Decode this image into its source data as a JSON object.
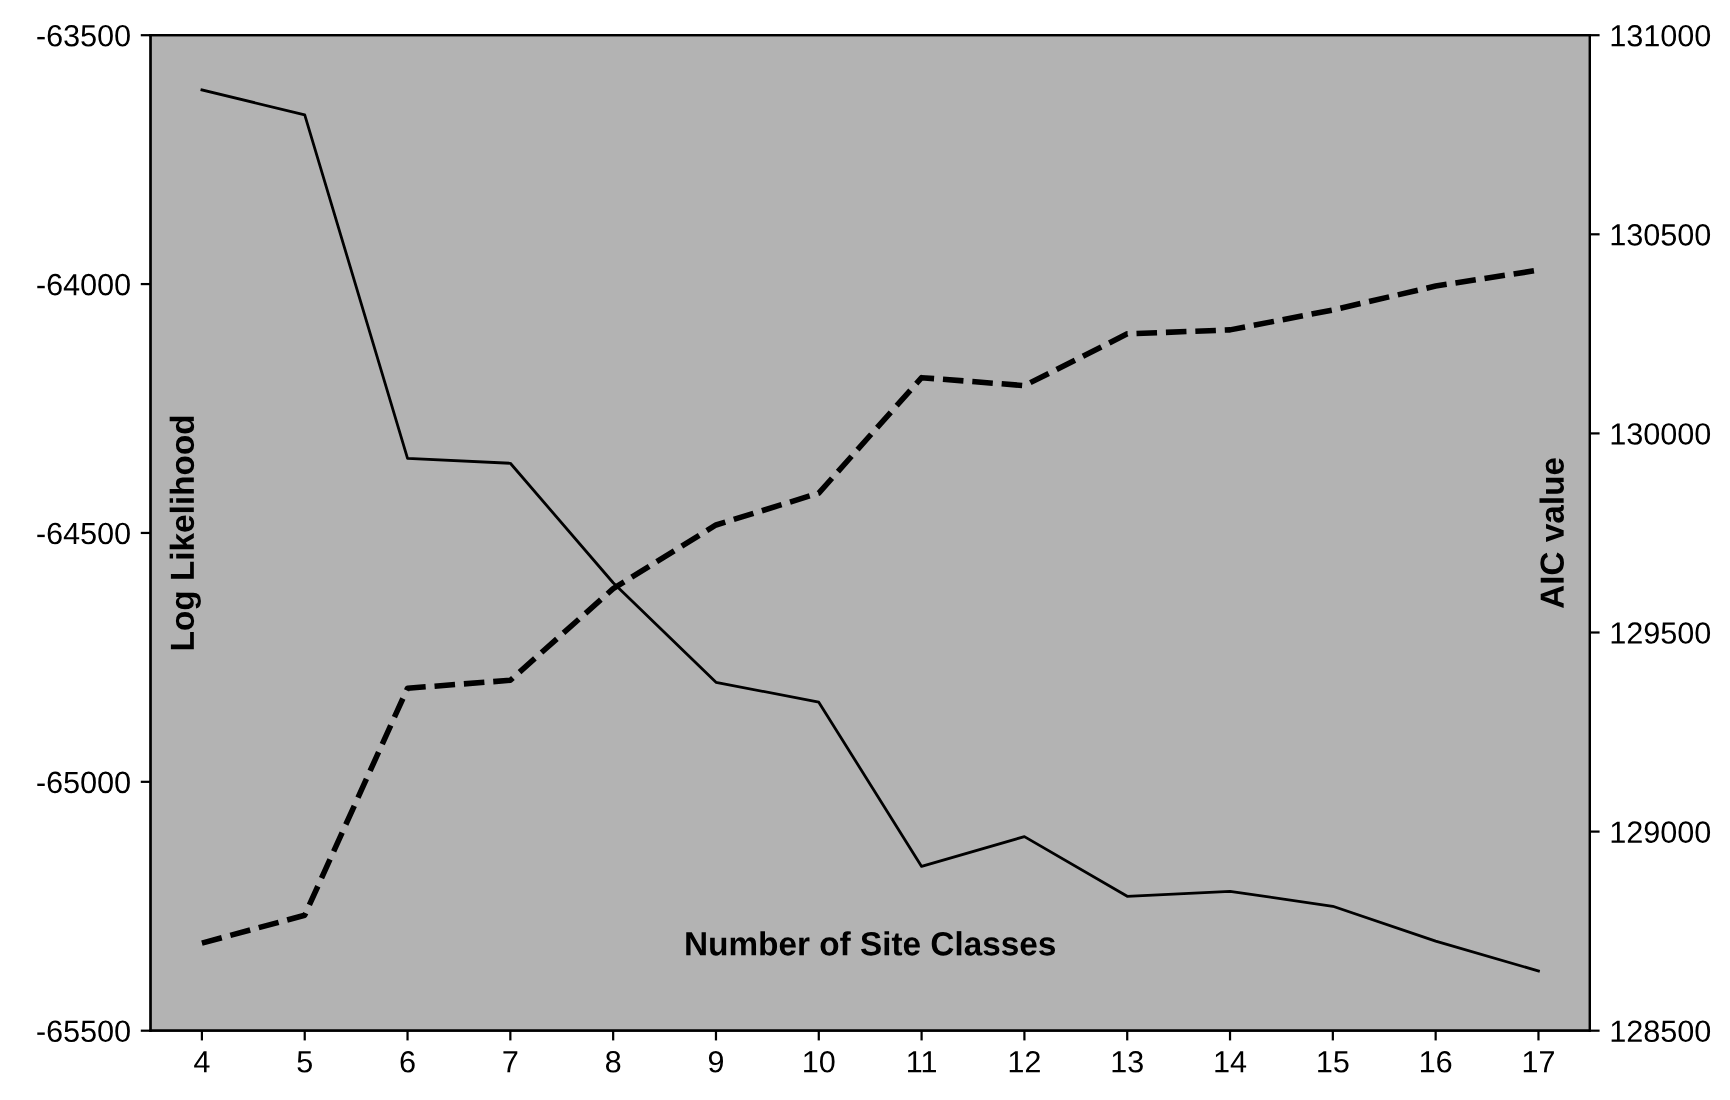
{
  "chart_data": {
    "type": "line",
    "xlabel": "Number of Site Classes",
    "ylabel": "Log Likelihood",
    "y2label": "AIC value",
    "categories": [
      "4",
      "5",
      "6",
      "7",
      "8",
      "9",
      "10",
      "11",
      "12",
      "13",
      "14",
      "15",
      "16",
      "17"
    ],
    "series": [
      {
        "color": "#000000",
        "line_style": "solid",
        "values": [
          -63610,
          -63660,
          -64350,
          -64360,
          -64600,
          -64800,
          -64840,
          -65170,
          -65110,
          -65230,
          -65220,
          -65250,
          -65320,
          -65380
        ]
      },
      {
        "color": "#000000",
        "line_style": "dashed",
        "axis": "y2",
        "values": [
          128720,
          128790,
          129360,
          129380,
          129610,
          129770,
          129850,
          130140,
          130120,
          130250,
          130260,
          130310,
          130370,
          130410
        ]
      }
    ],
    "ylim": [
      -65500,
      -63500
    ],
    "yticks": [
      -65500,
      -65000,
      -64500,
      -64000,
      -63500
    ],
    "y2lim": [
      128500,
      131000
    ],
    "y2ticks": [
      128500,
      129000,
      129500,
      130000,
      130500,
      131000
    ],
    "legend": false,
    "marker": "none"
  }
}
